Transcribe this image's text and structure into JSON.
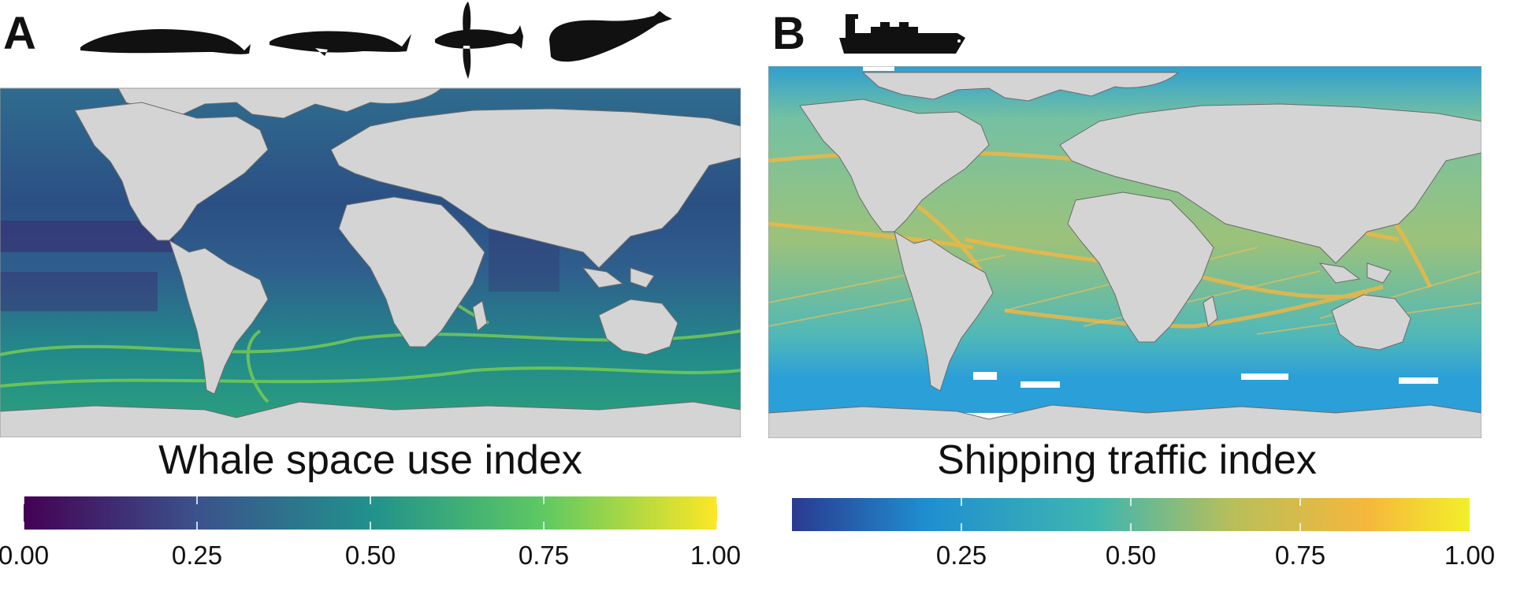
{
  "panels": [
    {
      "label": "A",
      "colorbar": {
        "title": "Whale space use index",
        "ticks": [
          "0.00",
          "0.25",
          "0.50",
          "0.75",
          "1.00"
        ],
        "tick_values": [
          0.0,
          0.25,
          0.5,
          0.75,
          1.0
        ],
        "colors": [
          "#440154",
          "#3b528b",
          "#21918c",
          "#5ec962",
          "#fde725"
        ]
      },
      "icons": [
        "blue-whale-silhouette-icon",
        "fin-whale-silhouette-icon",
        "humpback-whale-silhouette-icon",
        "sperm-whale-silhouette-icon"
      ],
      "map": {
        "background": "#2c6c8a",
        "land": "#d4d4d4"
      }
    },
    {
      "label": "B",
      "colorbar": {
        "title": "Shipping traffic index",
        "ticks": [
          "0.25",
          "0.50",
          "0.75",
          "1.00"
        ],
        "tick_values": [
          0.25,
          0.5,
          0.75,
          1.0
        ],
        "colors": [
          "#2a3a8f",
          "#1f8fd0",
          "#3fb6b0",
          "#b8bf5a",
          "#f6b73c",
          "#f2ef2a"
        ]
      },
      "icons": [
        "container-ship-silhouette-icon"
      ],
      "map": {
        "background": "#6fc0a8",
        "land": "#d4d4d4"
      }
    }
  ]
}
